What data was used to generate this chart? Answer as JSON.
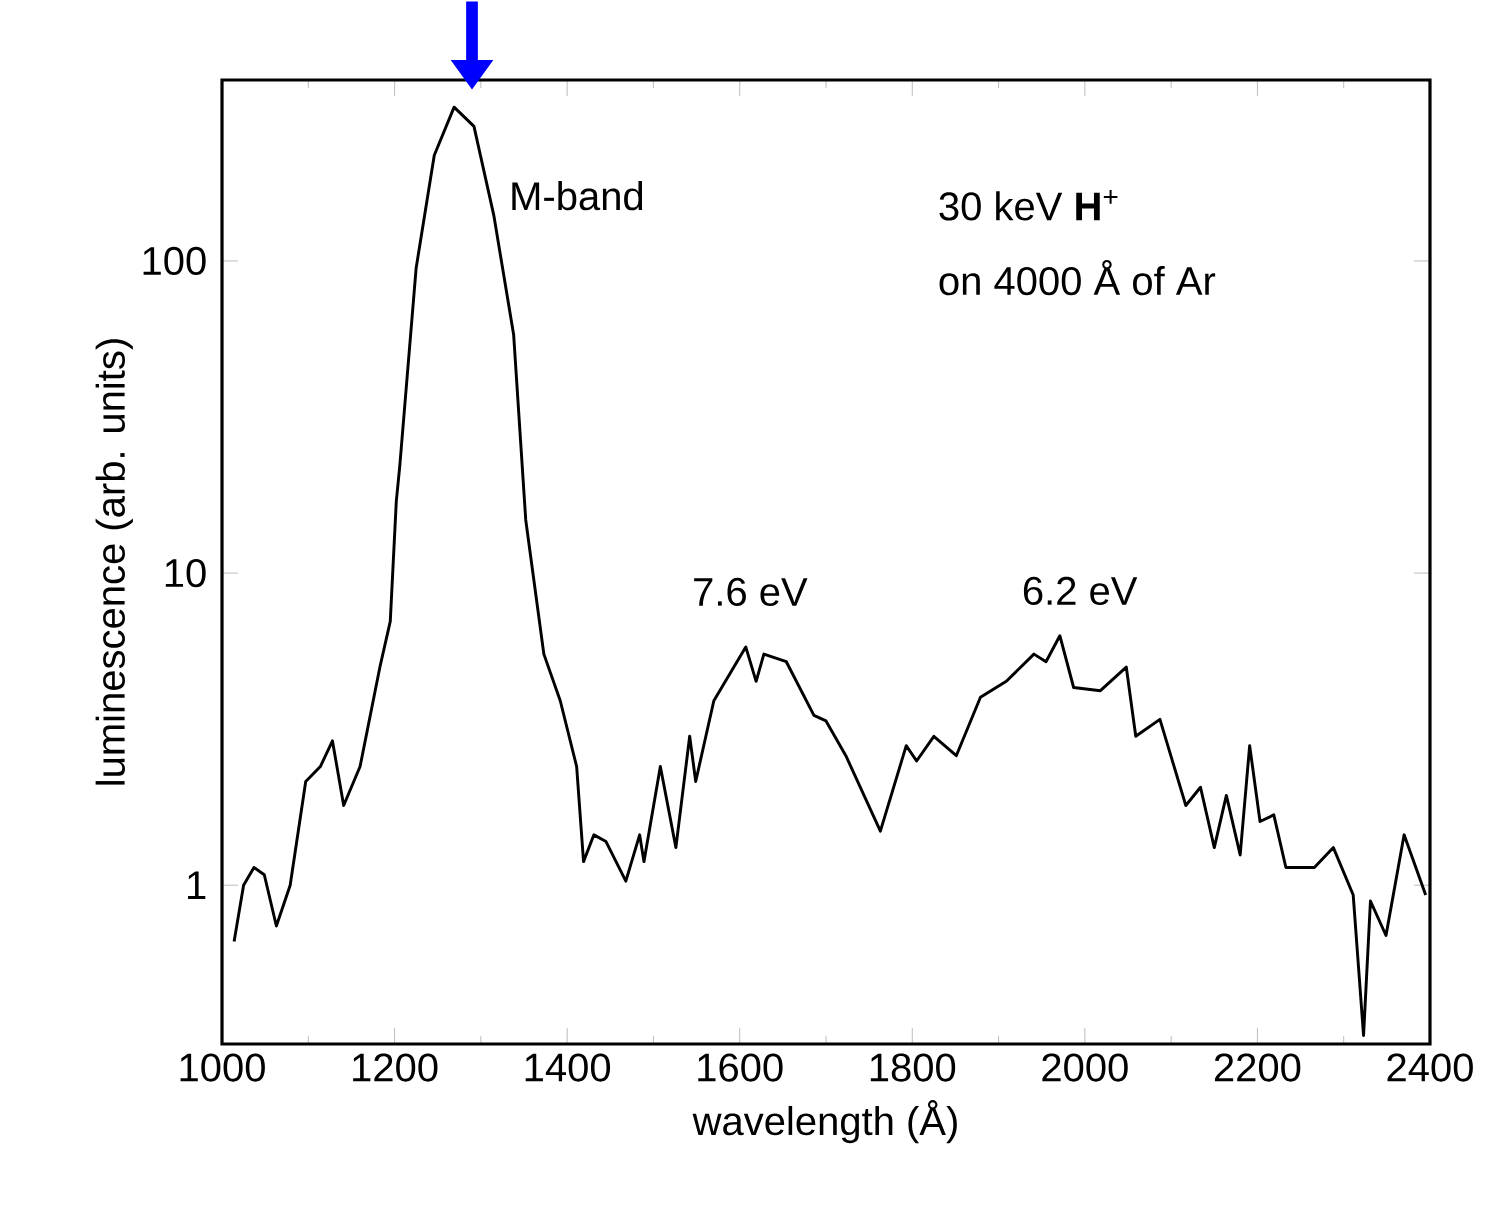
{
  "chart_data": {
    "type": "line",
    "xlabel": "wavelength (Å)",
    "ylabel": "luminescence (arb. units)",
    "log": "y",
    "grid": false,
    "marker": "none",
    "line_style": "solid",
    "xlim": [
      1000,
      2400
    ],
    "ylim": [
      0.31,
      380
    ],
    "xticks": [
      1000,
      1200,
      1400,
      1600,
      1800,
      2000,
      2200,
      2400
    ],
    "yticks": [
      1,
      10,
      100
    ],
    "annotations": [
      "M-band",
      "7.6 eV",
      "6.2 eV",
      "30 keV **H**$^{+}$",
      "on 4000 Å of Ar"
    ],
    "series": [
      {
        "color": "#000000",
        "x": [
          1014,
          1025,
          1037,
          1049,
          1063,
          1079,
          1097,
          1114,
          1128,
          1141,
          1160,
          1183,
          1195,
          1202,
          1206,
          1225,
          1246,
          1269,
          1292,
          1315,
          1338,
          1352,
          1373,
          1392,
          1411,
          1419,
          1431,
          1445,
          1468,
          1484,
          1489,
          1508,
          1526,
          1542,
          1549,
          1570,
          1607,
          1619,
          1628,
          1654,
          1686,
          1700,
          1723,
          1763,
          1793,
          1805,
          1825,
          1851,
          1879,
          1909,
          1941,
          1955,
          1971,
          1987,
          2018,
          2048,
          2059,
          2087,
          2117,
          2134,
          2150,
          2164,
          2180,
          2191,
          2203,
          2219,
          2233,
          2266,
          2288,
          2311,
          2323,
          2331,
          2349,
          2370,
          2395
        ],
        "values": [
          0.66,
          1.0,
          1.14,
          1.08,
          0.74,
          1.0,
          2.15,
          2.4,
          2.9,
          1.8,
          2.4,
          5.0,
          7,
          17,
          22,
          95,
          218,
          311,
          270,
          140,
          58,
          14.8,
          5.5,
          3.9,
          2.4,
          1.19,
          1.45,
          1.38,
          1.03,
          1.45,
          1.19,
          2.4,
          1.32,
          3.0,
          2.15,
          3.9,
          5.8,
          4.5,
          5.5,
          5.2,
          3.5,
          3.36,
          2.6,
          1.49,
          2.8,
          2.5,
          3.0,
          2.6,
          4.0,
          4.5,
          5.5,
          5.2,
          6.3,
          4.3,
          4.2,
          5.0,
          3.0,
          3.4,
          1.8,
          2.06,
          1.32,
          1.94,
          1.25,
          2.8,
          1.6,
          1.68,
          1.14,
          1.14,
          1.32,
          0.93,
          0.33,
          0.89,
          0.69,
          1.45,
          0.93
        ]
      }
    ]
  }
}
